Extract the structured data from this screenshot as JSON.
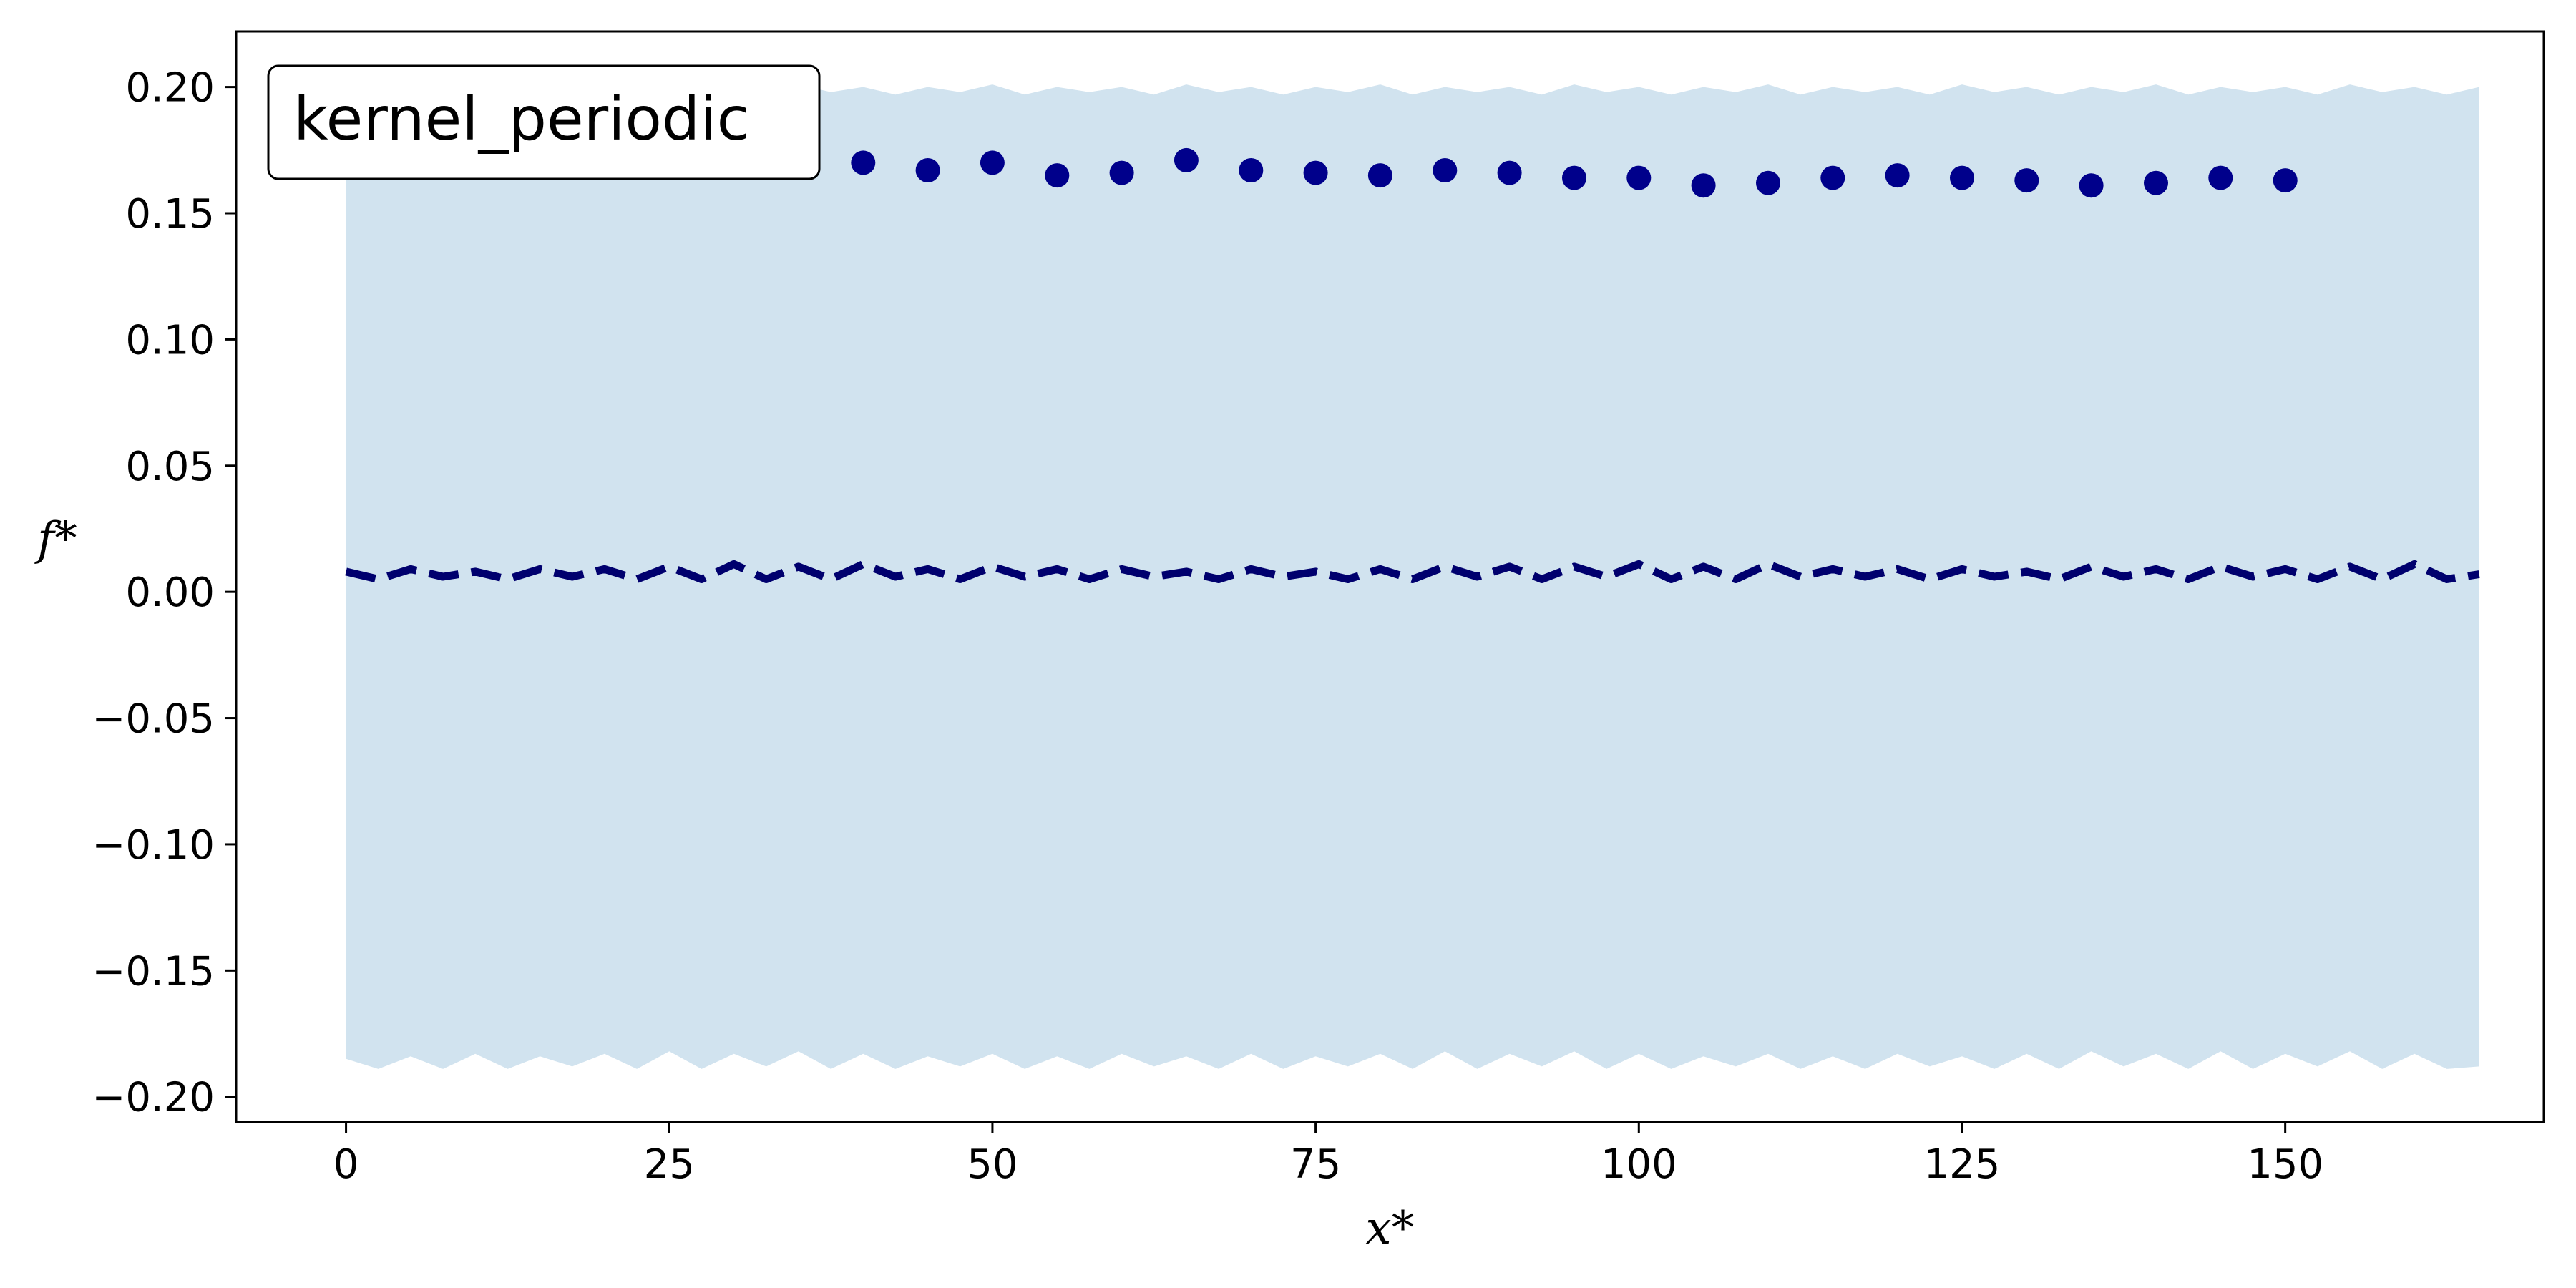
{
  "chart_data": {
    "type": "scatter",
    "title": "",
    "xlabel": "x*",
    "ylabel": "f*",
    "xlim": [
      -8.5,
      170
    ],
    "ylim": [
      -0.21,
      0.222
    ],
    "xticks": [
      0,
      25,
      50,
      75,
      100,
      125,
      150
    ],
    "yticks": [
      0.2,
      0.15,
      0.1,
      0.05,
      0.0,
      -0.05,
      -0.1,
      -0.15,
      -0.2
    ],
    "ytick_labels": [
      "0.20",
      "0.15",
      "0.10",
      "0.05",
      "0.00",
      "−0.05",
      "−0.10",
      "−0.15",
      "−0.20"
    ],
    "grid": false,
    "legend": {
      "label": "kernel_periodic",
      "placement": "top-left"
    },
    "colors": {
      "points": "#00008b",
      "mean_line": "#00006e",
      "band": "#d1e3ef"
    },
    "observations": {
      "x": [
        0,
        5,
        10,
        15,
        20,
        25,
        30,
        35,
        40,
        45,
        50,
        55,
        60,
        65,
        70,
        75,
        80,
        85,
        90,
        95,
        100,
        105,
        110,
        115,
        120,
        125,
        130,
        135,
        140,
        145,
        150
      ],
      "y": [
        0.175,
        0.173,
        0.171,
        0.172,
        0.17,
        0.171,
        0.169,
        0.172,
        0.17,
        0.167,
        0.17,
        0.165,
        0.166,
        0.171,
        0.167,
        0.166,
        0.165,
        0.167,
        0.166,
        0.164,
        0.164,
        0.161,
        0.162,
        0.164,
        0.165,
        0.164,
        0.163,
        0.161,
        0.162,
        0.164,
        0.163
      ]
    },
    "posterior_mean": {
      "x": [
        0,
        2.5,
        5,
        7.5,
        10,
        12.5,
        15,
        17.5,
        20,
        22.5,
        25,
        27.5,
        30,
        32.5,
        35,
        37.5,
        40,
        42.5,
        45,
        47.5,
        50,
        52.5,
        55,
        57.5,
        60,
        62.5,
        65,
        67.5,
        70,
        72.5,
        75,
        77.5,
        80,
        82.5,
        85,
        87.5,
        90,
        92.5,
        95,
        97.5,
        100,
        102.5,
        105,
        107.5,
        110,
        112.5,
        115,
        117.5,
        120,
        122.5,
        125,
        127.5,
        130,
        132.5,
        135,
        137.5,
        140,
        142.5,
        145,
        147.5,
        150,
        152.5,
        155,
        157.5,
        160,
        162.5,
        165
      ],
      "y": [
        0.008,
        0.005,
        0.009,
        0.006,
        0.008,
        0.005,
        0.009,
        0.006,
        0.009,
        0.005,
        0.01,
        0.005,
        0.011,
        0.005,
        0.01,
        0.005,
        0.011,
        0.006,
        0.009,
        0.005,
        0.01,
        0.006,
        0.009,
        0.005,
        0.009,
        0.006,
        0.008,
        0.005,
        0.009,
        0.006,
        0.008,
        0.005,
        0.009,
        0.005,
        0.01,
        0.006,
        0.01,
        0.005,
        0.01,
        0.006,
        0.011,
        0.005,
        0.01,
        0.005,
        0.011,
        0.006,
        0.009,
        0.006,
        0.009,
        0.005,
        0.009,
        0.006,
        0.008,
        0.005,
        0.01,
        0.006,
        0.009,
        0.005,
        0.01,
        0.006,
        0.009,
        0.005,
        0.01,
        0.005,
        0.011,
        0.005,
        0.007
      ]
    },
    "confidence_band": {
      "x": [
        0,
        2.5,
        5,
        7.5,
        10,
        12.5,
        15,
        17.5,
        20,
        22.5,
        25,
        27.5,
        30,
        32.5,
        35,
        37.5,
        40,
        42.5,
        45,
        47.5,
        50,
        52.5,
        55,
        57.5,
        60,
        62.5,
        65,
        67.5,
        70,
        72.5,
        75,
        77.5,
        80,
        82.5,
        85,
        87.5,
        90,
        92.5,
        95,
        97.5,
        100,
        102.5,
        105,
        107.5,
        110,
        112.5,
        115,
        117.5,
        120,
        122.5,
        125,
        127.5,
        130,
        132.5,
        135,
        137.5,
        140,
        142.5,
        145,
        147.5,
        150,
        152.5,
        155,
        157.5,
        160,
        162.5,
        165
      ],
      "upper": [
        0.199,
        0.197,
        0.2,
        0.198,
        0.2,
        0.197,
        0.2,
        0.198,
        0.2,
        0.197,
        0.201,
        0.198,
        0.2,
        0.197,
        0.201,
        0.198,
        0.2,
        0.197,
        0.2,
        0.198,
        0.201,
        0.197,
        0.2,
        0.198,
        0.2,
        0.197,
        0.201,
        0.198,
        0.2,
        0.197,
        0.2,
        0.198,
        0.201,
        0.197,
        0.2,
        0.198,
        0.2,
        0.197,
        0.201,
        0.198,
        0.2,
        0.197,
        0.2,
        0.198,
        0.201,
        0.197,
        0.2,
        0.198,
        0.2,
        0.197,
        0.201,
        0.198,
        0.2,
        0.197,
        0.2,
        0.198,
        0.201,
        0.197,
        0.2,
        0.198,
        0.2,
        0.197,
        0.201,
        0.198,
        0.2,
        0.197,
        0.2
      ],
      "lower": [
        -0.185,
        -0.189,
        -0.184,
        -0.189,
        -0.183,
        -0.189,
        -0.184,
        -0.188,
        -0.183,
        -0.189,
        -0.182,
        -0.189,
        -0.183,
        -0.188,
        -0.182,
        -0.189,
        -0.183,
        -0.189,
        -0.184,
        -0.188,
        -0.183,
        -0.189,
        -0.184,
        -0.189,
        -0.183,
        -0.188,
        -0.184,
        -0.189,
        -0.183,
        -0.189,
        -0.184,
        -0.188,
        -0.183,
        -0.189,
        -0.182,
        -0.189,
        -0.183,
        -0.188,
        -0.182,
        -0.189,
        -0.183,
        -0.189,
        -0.184,
        -0.188,
        -0.183,
        -0.189,
        -0.184,
        -0.189,
        -0.183,
        -0.188,
        -0.184,
        -0.189,
        -0.183,
        -0.189,
        -0.182,
        -0.188,
        -0.183,
        -0.189,
        -0.182,
        -0.189,
        -0.183,
        -0.188,
        -0.182,
        -0.189,
        -0.183,
        -0.189,
        -0.188
      ]
    }
  }
}
